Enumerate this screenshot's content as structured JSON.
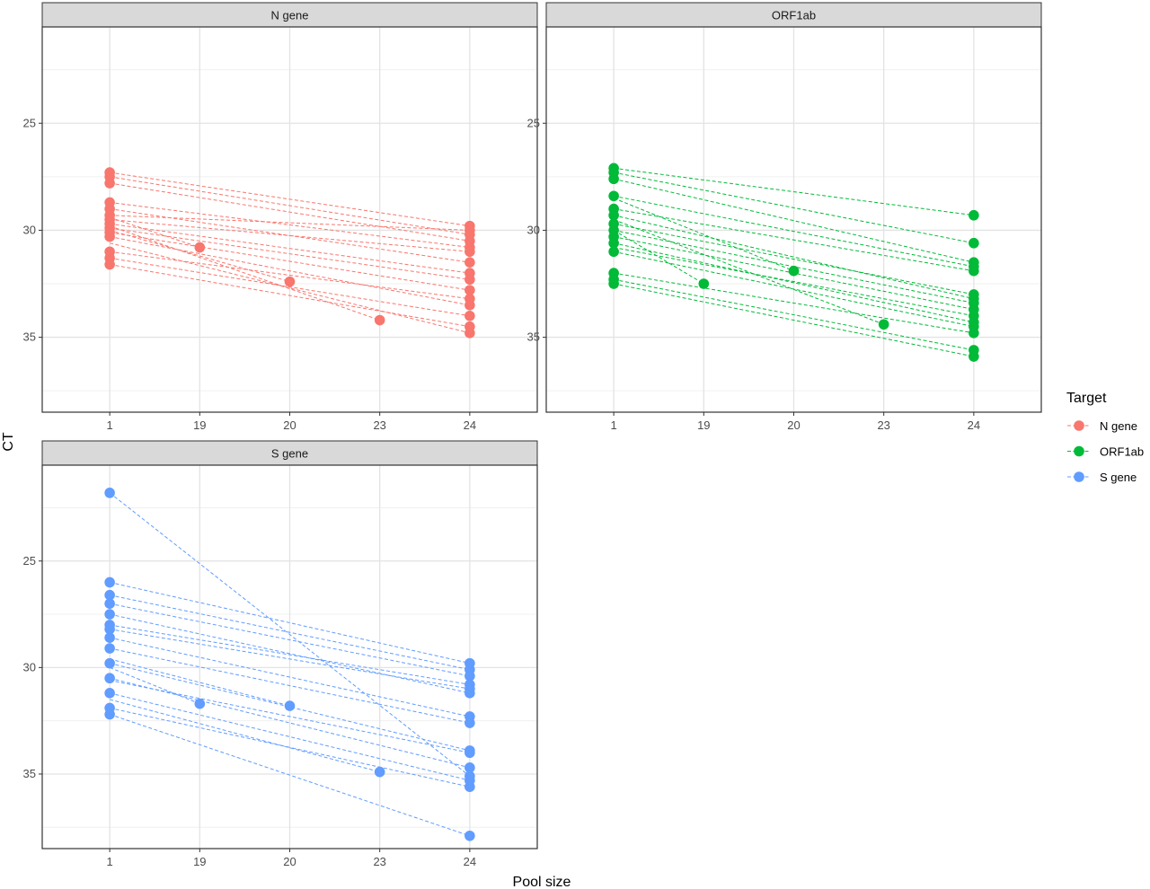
{
  "chart_data": {
    "type": "line",
    "facet_by": "Target",
    "x_categories": [
      "1",
      "19",
      "20",
      "23",
      "24"
    ],
    "xlabel": "Pool size",
    "ylabel": "CT",
    "y_reversed": true,
    "ylim": [
      38.5,
      20.5
    ],
    "yticks": [
      25,
      30,
      35
    ],
    "grid": true,
    "legend": {
      "title": "Target",
      "position": "right",
      "items": [
        {
          "label": "N gene",
          "color": "#F8766D"
        },
        {
          "label": "ORF1ab",
          "color": "#00BA38"
        },
        {
          "label": "S gene",
          "color": "#619CFF"
        }
      ]
    },
    "panels": [
      {
        "strip": "N gene",
        "color": "#F8766D",
        "series": [
          {
            "from": [
              "1",
              27.3
            ],
            "to": [
              "24",
              29.8
            ]
          },
          {
            "from": [
              "1",
              27.5
            ],
            "to": [
              "24",
              30.2
            ]
          },
          {
            "from": [
              "1",
              27.8
            ],
            "to": [
              "24",
              30.5
            ]
          },
          {
            "from": [
              "1",
              28.7
            ],
            "to": [
              "24",
              30.8
            ]
          },
          {
            "from": [
              "1",
              29.0
            ],
            "to": [
              "24",
              31.5
            ]
          },
          {
            "from": [
              "1",
              29.3
            ],
            "to": [
              "24",
              30.0
            ]
          },
          {
            "from": [
              "1",
              29.5
            ],
            "to": [
              "24",
              31.0
            ]
          },
          {
            "from": [
              "1",
              29.7
            ],
            "to": [
              "24",
              32.0
            ]
          },
          {
            "from": [
              "1",
              29.9
            ],
            "to": [
              "24",
              32.3
            ]
          },
          {
            "from": [
              "1",
              30.1
            ],
            "to": [
              "24",
              32.8
            ]
          },
          {
            "from": [
              "1",
              30.3
            ],
            "to": [
              "24",
              33.5
            ]
          },
          {
            "from": [
              "1",
              31.0
            ],
            "to": [
              "24",
              33.2
            ]
          },
          {
            "from": [
              "1",
              31.3
            ],
            "to": [
              "24",
              34.0
            ]
          },
          {
            "from": [
              "1",
              31.6
            ],
            "to": [
              "24",
              34.5
            ]
          },
          {
            "from": [
              "1",
              29.4
            ],
            "to": [
              "19",
              30.8
            ]
          },
          {
            "from": [
              "1",
              30.0
            ],
            "to": [
              "20",
              32.4
            ]
          },
          {
            "from": [
              "1",
              29.8
            ],
            "to": [
              "23",
              34.2
            ]
          },
          {
            "from": [
              "1",
              30.6
            ],
            "to": [
              "24",
              34.8
            ]
          }
        ],
        "points": [
          [
            "1",
            27.3
          ],
          [
            "1",
            27.5
          ],
          [
            "1",
            27.8
          ],
          [
            "1",
            28.7
          ],
          [
            "1",
            29.0
          ],
          [
            "1",
            29.3
          ],
          [
            "1",
            29.5
          ],
          [
            "1",
            29.7
          ],
          [
            "1",
            29.9
          ],
          [
            "1",
            30.1
          ],
          [
            "1",
            30.3
          ],
          [
            "1",
            31.0
          ],
          [
            "1",
            31.3
          ],
          [
            "1",
            31.6
          ],
          [
            "19",
            30.8
          ],
          [
            "20",
            32.4
          ],
          [
            "23",
            34.2
          ],
          [
            "24",
            29.8
          ],
          [
            "24",
            30.0
          ],
          [
            "24",
            30.2
          ],
          [
            "24",
            30.5
          ],
          [
            "24",
            30.8
          ],
          [
            "24",
            31.0
          ],
          [
            "24",
            31.5
          ],
          [
            "24",
            32.0
          ],
          [
            "24",
            32.3
          ],
          [
            "24",
            32.8
          ],
          [
            "24",
            33.2
          ],
          [
            "24",
            33.5
          ],
          [
            "24",
            34.0
          ],
          [
            "24",
            34.5
          ],
          [
            "24",
            34.8
          ]
        ]
      },
      {
        "strip": "ORF1ab",
        "color": "#00BA38",
        "series": [
          {
            "from": [
              "1",
              27.1
            ],
            "to": [
              "24",
              29.3
            ]
          },
          {
            "from": [
              "1",
              27.3
            ],
            "to": [
              "24",
              30.6
            ]
          },
          {
            "from": [
              "1",
              27.6
            ],
            "to": [
              "24",
              31.5
            ]
          },
          {
            "from": [
              "1",
              28.4
            ],
            "to": [
              "24",
              31.7
            ]
          },
          {
            "from": [
              "1",
              29.0
            ],
            "to": [
              "24",
              31.9
            ]
          },
          {
            "from": [
              "1",
              29.3
            ],
            "to": [
              "24",
              33.2
            ]
          },
          {
            "from": [
              "1",
              29.7
            ],
            "to": [
              "24",
              33.0
            ]
          },
          {
            "from": [
              "1",
              30.0
            ],
            "to": [
              "24",
              33.4
            ]
          },
          {
            "from": [
              "1",
              30.3
            ],
            "to": [
              "24",
              33.7
            ]
          },
          {
            "from": [
              "1",
              30.6
            ],
            "to": [
              "24",
              34.3
            ]
          },
          {
            "from": [
              "1",
              31.0
            ],
            "to": [
              "24",
              34.5
            ]
          },
          {
            "from": [
              "1",
              32.0
            ],
            "to": [
              "24",
              34.8
            ]
          },
          {
            "from": [
              "1",
              32.3
            ],
            "to": [
              "24",
              35.6
            ]
          },
          {
            "from": [
              "1",
              32.5
            ],
            "to": [
              "24",
              35.9
            ]
          },
          {
            "from": [
              "1",
              30.0
            ],
            "to": [
              "19",
              32.5
            ]
          },
          {
            "from": [
              "1",
              28.5
            ],
            "to": [
              "20",
              31.9
            ]
          },
          {
            "from": [
              "1",
              29.5
            ],
            "to": [
              "23",
              34.4
            ]
          },
          {
            "from": [
              "1",
              30.8
            ],
            "to": [
              "24",
              34.0
            ]
          }
        ],
        "points": [
          [
            "1",
            27.1
          ],
          [
            "1",
            27.3
          ],
          [
            "1",
            27.6
          ],
          [
            "1",
            28.4
          ],
          [
            "1",
            29.0
          ],
          [
            "1",
            29.3
          ],
          [
            "1",
            29.7
          ],
          [
            "1",
            30.0
          ],
          [
            "1",
            30.3
          ],
          [
            "1",
            30.6
          ],
          [
            "1",
            31.0
          ],
          [
            "1",
            32.0
          ],
          [
            "1",
            32.3
          ],
          [
            "1",
            32.5
          ],
          [
            "19",
            32.5
          ],
          [
            "20",
            31.9
          ],
          [
            "23",
            34.4
          ],
          [
            "24",
            29.3
          ],
          [
            "24",
            30.6
          ],
          [
            "24",
            31.5
          ],
          [
            "24",
            31.7
          ],
          [
            "24",
            31.9
          ],
          [
            "24",
            33.0
          ],
          [
            "24",
            33.2
          ],
          [
            "24",
            33.4
          ],
          [
            "24",
            33.7
          ],
          [
            "24",
            34.0
          ],
          [
            "24",
            34.3
          ],
          [
            "24",
            34.5
          ],
          [
            "24",
            34.8
          ],
          [
            "24",
            35.6
          ],
          [
            "24",
            35.9
          ]
        ]
      },
      {
        "strip": "S gene",
        "color": "#619CFF",
        "series": [
          {
            "from": [
              "1",
              21.8
            ],
            "to": [
              "24",
              35.1
            ]
          },
          {
            "from": [
              "1",
              26.0
            ],
            "to": [
              "24",
              29.8
            ]
          },
          {
            "from": [
              "1",
              26.6
            ],
            "to": [
              "24",
              30.1
            ]
          },
          {
            "from": [
              "1",
              27.0
            ],
            "to": [
              "24",
              30.4
            ]
          },
          {
            "from": [
              "1",
              27.5
            ],
            "to": [
              "24",
              31.2
            ]
          },
          {
            "from": [
              "1",
              28.0
            ],
            "to": [
              "24",
              30.8
            ]
          },
          {
            "from": [
              "1",
              28.2
            ],
            "to": [
              "24",
              31.0
            ]
          },
          {
            "from": [
              "1",
              28.6
            ],
            "to": [
              "24",
              32.3
            ]
          },
          {
            "from": [
              "1",
              29.1
            ],
            "to": [
              "24",
              32.6
            ]
          },
          {
            "from": [
              "1",
              29.8
            ],
            "to": [
              "24",
              33.9
            ]
          },
          {
            "from": [
              "1",
              30.5
            ],
            "to": [
              "24",
              34.7
            ]
          },
          {
            "from": [
              "1",
              31.2
            ],
            "to": [
              "24",
              35.3
            ]
          },
          {
            "from": [
              "1",
              31.9
            ],
            "to": [
              "24",
              35.6
            ]
          },
          {
            "from": [
              "1",
              32.2
            ],
            "to": [
              "24",
              37.9
            ]
          },
          {
            "from": [
              "1",
              30.0
            ],
            "to": [
              "19",
              31.7
            ]
          },
          {
            "from": [
              "1",
              29.6
            ],
            "to": [
              "20",
              31.8
            ]
          },
          {
            "from": [
              "1",
              31.5
            ],
            "to": [
              "23",
              34.9
            ]
          },
          {
            "from": [
              "1",
              30.6
            ],
            "to": [
              "24",
              34.0
            ]
          }
        ],
        "points": [
          [
            "1",
            21.8
          ],
          [
            "1",
            26.0
          ],
          [
            "1",
            26.6
          ],
          [
            "1",
            27.0
          ],
          [
            "1",
            27.5
          ],
          [
            "1",
            28.0
          ],
          [
            "1",
            28.2
          ],
          [
            "1",
            28.6
          ],
          [
            "1",
            29.1
          ],
          [
            "1",
            29.8
          ],
          [
            "1",
            30.5
          ],
          [
            "1",
            31.2
          ],
          [
            "1",
            31.9
          ],
          [
            "1",
            32.2
          ],
          [
            "19",
            31.7
          ],
          [
            "20",
            31.8
          ],
          [
            "23",
            34.9
          ],
          [
            "24",
            29.8
          ],
          [
            "24",
            30.1
          ],
          [
            "24",
            30.4
          ],
          [
            "24",
            30.8
          ],
          [
            "24",
            31.0
          ],
          [
            "24",
            31.2
          ],
          [
            "24",
            32.3
          ],
          [
            "24",
            32.6
          ],
          [
            "24",
            33.9
          ],
          [
            "24",
            34.0
          ],
          [
            "24",
            34.7
          ],
          [
            "24",
            35.1
          ],
          [
            "24",
            35.3
          ],
          [
            "24",
            35.6
          ],
          [
            "24",
            37.9
          ]
        ]
      }
    ]
  }
}
